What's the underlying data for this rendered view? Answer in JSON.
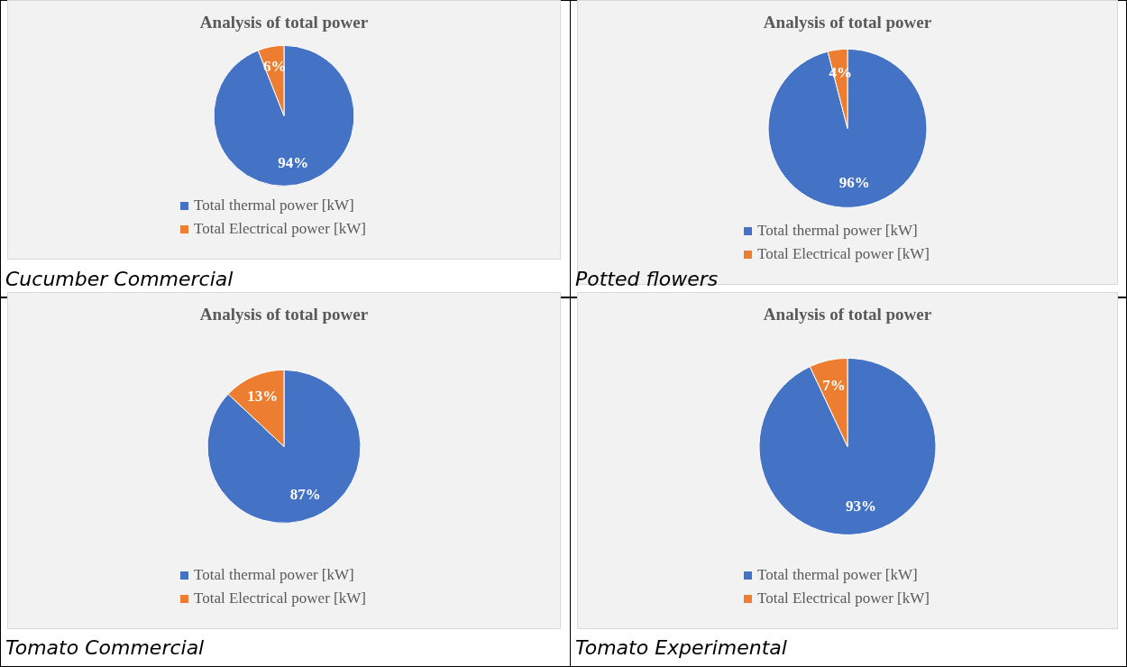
{
  "chart_data": [
    {
      "type": "pie",
      "title": "Analysis of total power",
      "categories": [
        "Total thermal power [kW]",
        "Total Electrical power [kW]"
      ],
      "values": [
        94,
        6
      ],
      "colors": [
        "#4472c4",
        "#ed7d31"
      ],
      "value_labels": [
        "94%",
        "6%"
      ],
      "legend": "bottom",
      "annotations": [
        "Cucumber Commercial"
      ]
    },
    {
      "type": "pie",
      "title": "Analysis of total power",
      "categories": [
        "Total thermal power [kW]",
        "Total Electrical power [kW]"
      ],
      "values": [
        96,
        4
      ],
      "colors": [
        "#4472c4",
        "#ed7d31"
      ],
      "value_labels": [
        "96%",
        "4%"
      ],
      "legend": "bottom",
      "annotations": [
        "Potted flowers"
      ]
    },
    {
      "type": "pie",
      "title": "Analysis of total power",
      "categories": [
        "Total thermal power [kW]",
        "Total Electrical power [kW]"
      ],
      "values": [
        87,
        13
      ],
      "colors": [
        "#4472c4",
        "#ed7d31"
      ],
      "value_labels": [
        "87%",
        "13%"
      ],
      "legend": "bottom",
      "annotations": [
        "Tomato Commercial"
      ]
    },
    {
      "type": "pie",
      "title": "Analysis of total power",
      "categories": [
        "Total thermal power [kW]",
        "Total Electrical power [kW]"
      ],
      "values": [
        93,
        7
      ],
      "colors": [
        "#4472c4",
        "#ed7d31"
      ],
      "value_labels": [
        "93%",
        "7%"
      ],
      "legend": "bottom",
      "annotations": [
        "Tomato Experimental"
      ]
    }
  ]
}
